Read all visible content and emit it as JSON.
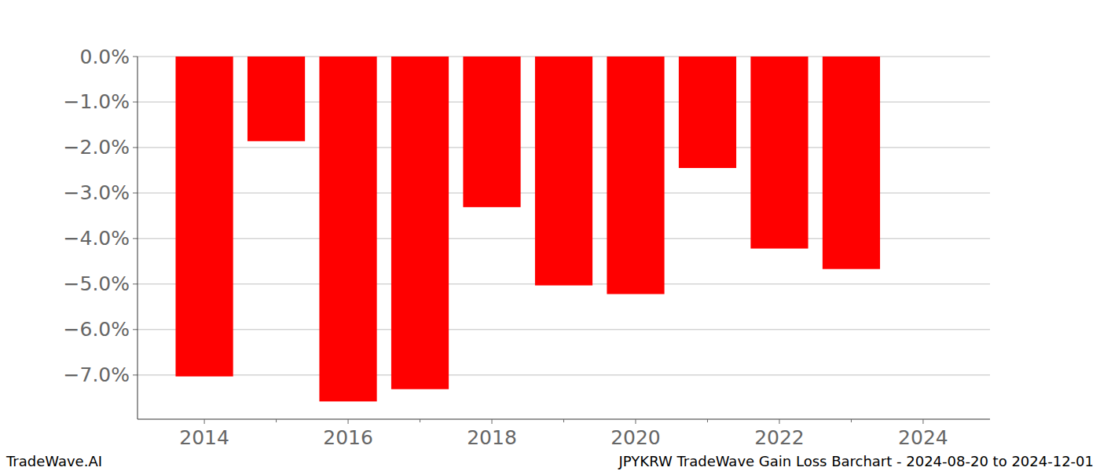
{
  "chart_data": {
    "type": "bar",
    "title": "JPYKRW TradeWave Gain Loss Barchart - 2024-08-20 to 2024-12-01",
    "annotations": [
      "TradeWave.AI"
    ],
    "x": [
      2014,
      2015,
      2016,
      2017,
      2018,
      2019,
      2020,
      2021,
      2022,
      2023
    ],
    "values": [
      -7.03,
      -1.86,
      -7.58,
      -7.31,
      -3.31,
      -5.03,
      -5.22,
      -2.45,
      -4.22,
      -4.67
    ],
    "color": "#ff0000",
    "xlim": [
      2013.07,
      2024.93
    ],
    "xticks": [
      2014,
      2016,
      2018,
      2020,
      2022,
      2024
    ],
    "ylim": [
      -7.97,
      0
    ],
    "yticks": [
      {
        "value": 0,
        "label": "0.0%"
      },
      {
        "value": -1,
        "label": "−1.0%"
      },
      {
        "value": -2,
        "label": "−2.0%"
      },
      {
        "value": -3,
        "label": "−3.0%"
      },
      {
        "value": -4,
        "label": "−4.0%"
      },
      {
        "value": -5,
        "label": "−5.0%"
      },
      {
        "value": -6,
        "label": "−6.0%"
      },
      {
        "value": -7,
        "label": "−7.0%"
      }
    ],
    "grid": true
  }
}
